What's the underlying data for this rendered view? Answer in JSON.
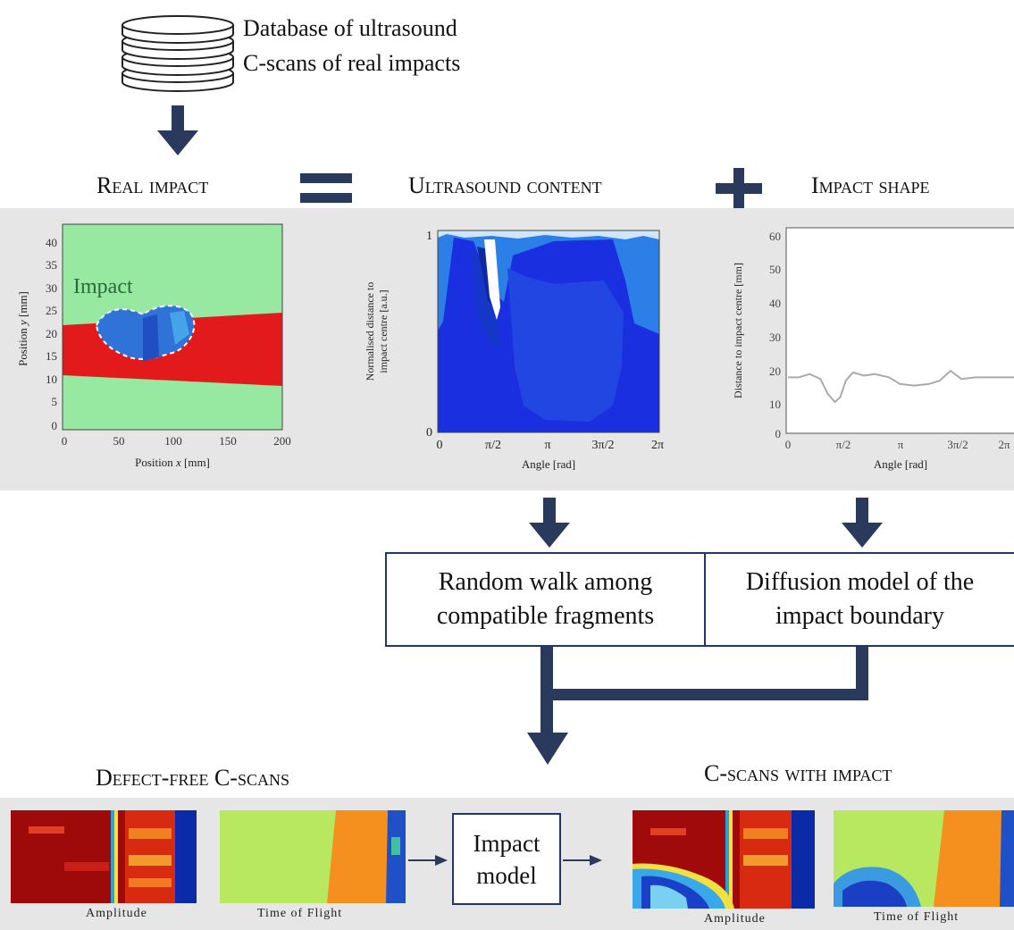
{
  "database": {
    "line1": "Database of ultrasound",
    "line2": "C-scans of real impacts"
  },
  "headers": {
    "real_impact": "Real impact",
    "equals_symbol": "=",
    "ultrasound_content": "Ultrasound content",
    "plus_symbol": "+",
    "impact_shape": "Impact shape"
  },
  "plot_real": {
    "ylabel_prefix": "Position ",
    "ylabel_var": "y",
    "ylabel_suffix": " [mm]",
    "xlabel_prefix": "Position ",
    "xlabel_var": "x",
    "xlabel_suffix": " [mm]",
    "annotation": "Impact",
    "yticks": [
      "40",
      "35",
      "30",
      "25",
      "20",
      "15",
      "10",
      "5",
      "0"
    ],
    "xticks": [
      "0",
      "50",
      "100",
      "150",
      "200"
    ]
  },
  "plot_content": {
    "ylabel_line1": "Normalised distance to",
    "ylabel_line2": "impact centre [a.u.]",
    "xlabel": "Angle [rad]",
    "ytick_top": "1",
    "ytick_bottom": "0",
    "xticks": [
      "0",
      "π/2",
      "π",
      "3π/2",
      "2π"
    ]
  },
  "plot_shape": {
    "ylabel": "Distance to impact centre [mm]",
    "xlabel": "Angle [rad]",
    "yticks": [
      "60",
      "50",
      "40",
      "30",
      "20",
      "10",
      "0"
    ],
    "xticks": [
      "0",
      "π/2",
      "π",
      "3π/2",
      "2π"
    ]
  },
  "chart_data": {
    "type": "line",
    "xlabel": "Angle [rad]",
    "ylabel": "Distance to impact centre [mm]",
    "xlim": [
      0,
      6.2832
    ],
    "ylim": [
      0,
      60
    ],
    "x": [
      0,
      0.3,
      0.6,
      0.9,
      1.1,
      1.3,
      1.45,
      1.6,
      1.8,
      2.1,
      2.4,
      2.8,
      3.1,
      3.5,
      3.9,
      4.2,
      4.5,
      4.8,
      5.2,
      5.6,
      6.0,
      6.2832
    ],
    "y": [
      17,
      17,
      18,
      16.5,
      12,
      9.5,
      11,
      16,
      18.5,
      17.5,
      18,
      17,
      15,
      14.5,
      15,
      16,
      19,
      16.5,
      17,
      17,
      17,
      17
    ]
  },
  "boxes": {
    "random_walk": "Random walk among compatible fragments",
    "diffusion": "Diffusion model of the impact boundary",
    "impact_model": "Impact model"
  },
  "bottom": {
    "defect_free": "Defect-free C-scans",
    "with_impact": "C-scans with impact",
    "amplitude": "Amplitude",
    "tof": "Time of Flight"
  }
}
